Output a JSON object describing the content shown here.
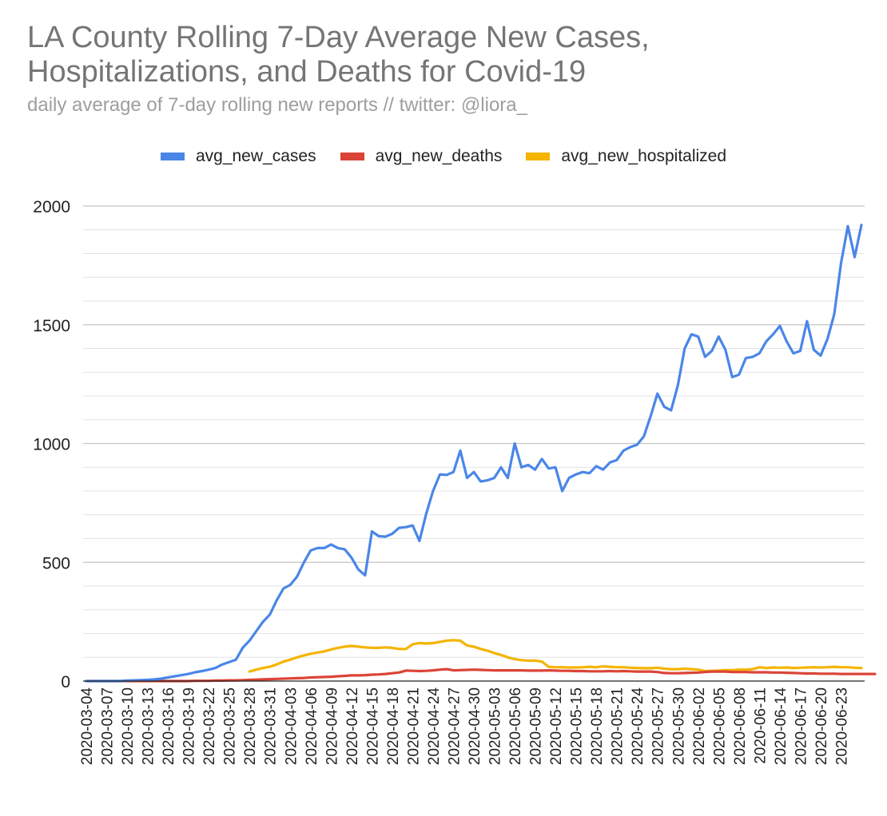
{
  "chart_data": {
    "type": "line",
    "title": "LA County Rolling 7-Day Average New Cases, Hospitalizations, and Deaths for Covid-19",
    "subtitle": "daily average of 7-day rolling new reports // twitter: @liora_",
    "start_date": "2020-03-04",
    "x_tick_labels": [
      "2020-03-04",
      "2020-03-07",
      "2020-03-10",
      "2020-03-13",
      "2020-03-16",
      "2020-03-19",
      "2020-03-22",
      "2020-03-25",
      "2020-03-28",
      "2020-03-31",
      "2020-04-03",
      "2020-04-06",
      "2020-04-09",
      "2020-04-12",
      "2020-04-15",
      "2020-04-18",
      "2020-04-21",
      "2020-04-24",
      "2020-04-27",
      "2020-04-30",
      "2020-05-03",
      "2020-05-06",
      "2020-05-09",
      "2020-05-12",
      "2020-05-15",
      "2020-05-18",
      "2020-05-21",
      "2020-05-24",
      "2020-05-27",
      "2020-05-30",
      "2020-06-02",
      "2020-06-05",
      "2020-06-08",
      "2020-06-11",
      "2020-06-14",
      "2020-06-17",
      "2020-06-20",
      "2020-06-23"
    ],
    "ylim": [
      0,
      2000
    ],
    "y_ticks": [
      0,
      500,
      1000,
      1500,
      2000
    ],
    "series": [
      {
        "name": "avg_new_cases",
        "color": "#4a86e8",
        "values": [
          0,
          0,
          0,
          0,
          0,
          0,
          2,
          3,
          4,
          5,
          7,
          10,
          15,
          20,
          25,
          30,
          37,
          42,
          48,
          55,
          70,
          80,
          90,
          140,
          170,
          210,
          250,
          280,
          340,
          390,
          405,
          440,
          500,
          550,
          560,
          560,
          575,
          560,
          555,
          520,
          470,
          445,
          630,
          610,
          608,
          620,
          645,
          648,
          655,
          590,
          705,
          800,
          870,
          868,
          880,
          970,
          855,
          880,
          840,
          845,
          855,
          900,
          855,
          1000,
          900,
          910,
          890,
          935,
          895,
          900,
          800,
          855,
          870,
          880,
          875,
          905,
          890,
          920,
          930,
          970,
          985,
          995,
          1030,
          1115,
          1210,
          1155,
          1140,
          1245,
          1400,
          1460,
          1450,
          1365,
          1390,
          1450,
          1395,
          1280,
          1290,
          1360,
          1365,
          1380,
          1430,
          1460,
          1495,
          1430,
          1380,
          1390,
          1515,
          1395,
          1370,
          1440,
          1545,
          1760,
          1915,
          1785,
          1920
        ]
      },
      {
        "name": "avg_new_deaths",
        "color": "#db4437",
        "values": [
          0,
          0,
          0,
          0,
          0,
          0,
          0,
          0,
          0,
          0,
          0,
          0,
          0,
          0,
          0,
          0,
          1,
          1,
          1,
          2,
          2,
          3,
          3,
          4,
          5,
          6,
          7,
          8,
          9,
          10,
          11,
          12,
          13,
          15,
          16,
          17,
          18,
          20,
          22,
          24,
          24,
          25,
          27,
          28,
          30,
          33,
          36,
          44,
          43,
          42,
          43,
          45,
          48,
          50,
          45,
          46,
          47,
          48,
          47,
          46,
          45,
          45,
          45,
          45,
          45,
          44,
          44,
          44,
          45,
          44,
          43,
          43,
          42,
          42,
          41,
          41,
          41,
          42,
          41,
          42,
          41,
          40,
          40,
          40,
          38,
          34,
          33,
          33,
          34,
          35,
          36,
          38,
          40,
          40,
          40,
          38,
          38,
          38,
          37,
          37,
          37,
          36,
          36,
          35,
          34,
          33,
          32,
          32,
          31,
          31,
          31,
          30,
          30,
          30,
          30,
          30,
          30
        ]
      },
      {
        "name": "avg_new_hospitalized",
        "color": "#f4b400",
        "values": [
          null,
          null,
          null,
          null,
          null,
          null,
          null,
          null,
          null,
          null,
          null,
          null,
          null,
          null,
          null,
          null,
          null,
          null,
          null,
          null,
          null,
          null,
          null,
          null,
          40,
          48,
          55,
          60,
          70,
          82,
          90,
          100,
          108,
          115,
          120,
          125,
          133,
          140,
          145,
          148,
          145,
          142,
          140,
          140,
          142,
          140,
          135,
          135,
          155,
          160,
          158,
          160,
          165,
          170,
          172,
          170,
          150,
          145,
          135,
          128,
          118,
          110,
          100,
          92,
          88,
          86,
          86,
          82,
          60,
          58,
          58,
          57,
          57,
          58,
          60,
          58,
          62,
          60,
          58,
          58,
          56,
          55,
          54,
          54,
          56,
          52,
          50,
          50,
          52,
          50,
          48,
          42,
          43,
          44,
          46,
          46,
          48,
          48,
          50,
          58,
          55,
          57,
          56,
          57,
          55,
          56,
          57,
          58,
          57,
          58,
          60,
          58,
          58,
          56,
          55
        ]
      }
    ]
  }
}
